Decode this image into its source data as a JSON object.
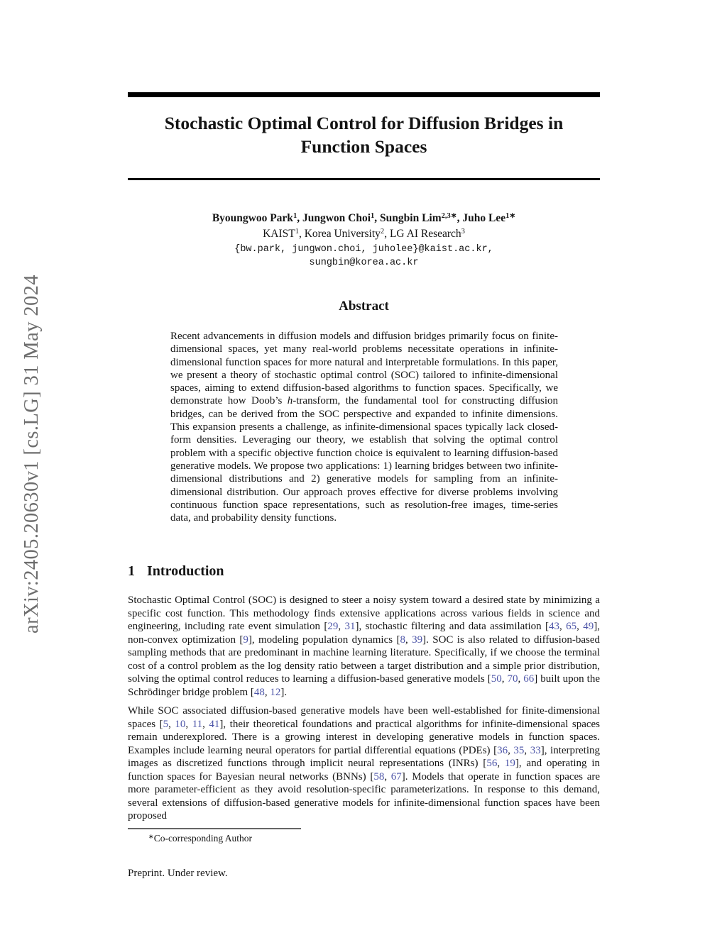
{
  "page": {
    "background": "#ffffff",
    "text_color": "#141414",
    "cite_color": "#4d55a8",
    "stamp_color": "#6d6d6d",
    "rule_color": "#000000",
    "footnote_rule_color": "#666666"
  },
  "arxiv_stamp": {
    "text": "arXiv:2405.20630v1  [cs.LG]  31 May 2024"
  },
  "title": {
    "line1": "Stochastic Optimal Control for Diffusion Bridges in",
    "line2": "Function Spaces"
  },
  "authors": {
    "names_runs": [
      {
        "t": "Byoungwoo Park"
      },
      {
        "t": "1",
        "s": "sup"
      },
      {
        "t": ", Jungwon Choi"
      },
      {
        "t": "1",
        "s": "sup"
      },
      {
        "t": ", Sungbin Lim"
      },
      {
        "t": "2,3∗",
        "s": "sup"
      },
      {
        "t": ", Juho Lee"
      },
      {
        "t": "1∗",
        "s": "sup"
      }
    ],
    "affiliations_runs": [
      {
        "t": "KAIST"
      },
      {
        "t": "1",
        "s": "sup"
      },
      {
        "t": ", Korea University"
      },
      {
        "t": "2",
        "s": "sup"
      },
      {
        "t": ", LG AI Research"
      },
      {
        "t": "3",
        "s": "sup"
      }
    ],
    "email_line1": "{bw.park, jungwon.choi, juholee}@kaist.ac.kr,",
    "email_line2": "sungbin@korea.ac.kr"
  },
  "abstract": {
    "heading": "Abstract",
    "body_runs": [
      {
        "t": "Recent advancements in diffusion models and diffusion bridges primarily focus on finite-dimensional spaces, yet many real-world problems necessitate operations in infinite-dimensional function spaces for more natural and interpretable formulations. In this paper, we present a theory of stochastic optimal control (SOC) tailored to infinite-dimensional spaces, aiming to extend diffusion-based algorithms to function spaces. Specifically, we demonstrate how Doob’s "
      },
      {
        "t": "h",
        "s": "i"
      },
      {
        "t": "-transform, the fundamental tool for constructing diffusion bridges, can be derived from the SOC perspective and expanded to infinite dimensions. This expansion presents a challenge, as infinite-dimensional spaces typically lack closed-form densities. Leveraging our theory, we establish that solving the optimal control problem with a specific objective function choice is equivalent to learning diffusion-based generative models. We propose two applications: 1) learning bridges between two infinite-dimensional distributions and 2) generative models for sampling from an infinite-dimensional distribution. Our approach proves effective for diverse problems involving continuous function space representations, such as resolution-free images, time-series data, and probability density functions."
      }
    ]
  },
  "introduction": {
    "number": "1",
    "heading": "Introduction",
    "paragraph1_runs": [
      {
        "t": "Stochastic Optimal Control (SOC) is designed to steer a noisy system toward a desired state by minimizing a specific cost function. This methodology finds extensive applications across various fields in science and engineering, including rate event simulation ["
      },
      {
        "t": "29",
        "s": "cite"
      },
      {
        "t": ", "
      },
      {
        "t": "31",
        "s": "cite"
      },
      {
        "t": "], stochastic filtering and data assimilation ["
      },
      {
        "t": "43",
        "s": "cite"
      },
      {
        "t": ", "
      },
      {
        "t": "65",
        "s": "cite"
      },
      {
        "t": ", "
      },
      {
        "t": "49",
        "s": "cite"
      },
      {
        "t": "], non-convex optimization ["
      },
      {
        "t": "9",
        "s": "cite"
      },
      {
        "t": "], modeling population dynamics ["
      },
      {
        "t": "8",
        "s": "cite"
      },
      {
        "t": ", "
      },
      {
        "t": "39",
        "s": "cite"
      },
      {
        "t": "]. SOC is also related to diffusion-based sampling methods that are predominant in machine learning literature. Specifically, if we choose the terminal cost of a control problem as the log density ratio between a target distribution and a simple prior distribution, solving the optimal control reduces to learning a diffusion-based generative models ["
      },
      {
        "t": "50",
        "s": "cite"
      },
      {
        "t": ", "
      },
      {
        "t": "70",
        "s": "cite"
      },
      {
        "t": ", "
      },
      {
        "t": "66",
        "s": "cite"
      },
      {
        "t": "] built upon the Schrödinger bridge problem ["
      },
      {
        "t": "48",
        "s": "cite"
      },
      {
        "t": ", "
      },
      {
        "t": "12",
        "s": "cite"
      },
      {
        "t": "]."
      }
    ],
    "paragraph2_runs": [
      {
        "t": "While SOC associated diffusion-based generative models have been well-established for finite-dimensional spaces ["
      },
      {
        "t": "5",
        "s": "cite"
      },
      {
        "t": ", "
      },
      {
        "t": "10",
        "s": "cite"
      },
      {
        "t": ", "
      },
      {
        "t": "11",
        "s": "cite"
      },
      {
        "t": ", "
      },
      {
        "t": "41",
        "s": "cite"
      },
      {
        "t": "], their theoretical foundations and practical algorithms for infinite-dimensional spaces remain underexplored. There is a growing interest in developing generative models in function spaces. Examples include learning neural operators for partial differential equations (PDEs) ["
      },
      {
        "t": "36",
        "s": "cite"
      },
      {
        "t": ", "
      },
      {
        "t": "35",
        "s": "cite"
      },
      {
        "t": ", "
      },
      {
        "t": "33",
        "s": "cite"
      },
      {
        "t": "], interpreting images as discretized functions through implicit neural representations (INRs) ["
      },
      {
        "t": "56",
        "s": "cite"
      },
      {
        "t": ", "
      },
      {
        "t": "19",
        "s": "cite"
      },
      {
        "t": "], and operating in function spaces for Bayesian neural networks (BNNs) ["
      },
      {
        "t": "58",
        "s": "cite"
      },
      {
        "t": ", "
      },
      {
        "t": "67",
        "s": "cite"
      },
      {
        "t": "]. Models that operate in function spaces are more parameter-efficient as they avoid resolution-specific parameterizations. In response to this demand, several extensions of diffusion-based generative models for infinite-dimensional function spaces have been proposed"
      }
    ]
  },
  "footnote_runs": [
    {
      "t": "∗",
      "s": "sup"
    },
    {
      "t": "Co-corresponding Author"
    }
  ],
  "footer": {
    "text": "Preprint. Under review."
  }
}
